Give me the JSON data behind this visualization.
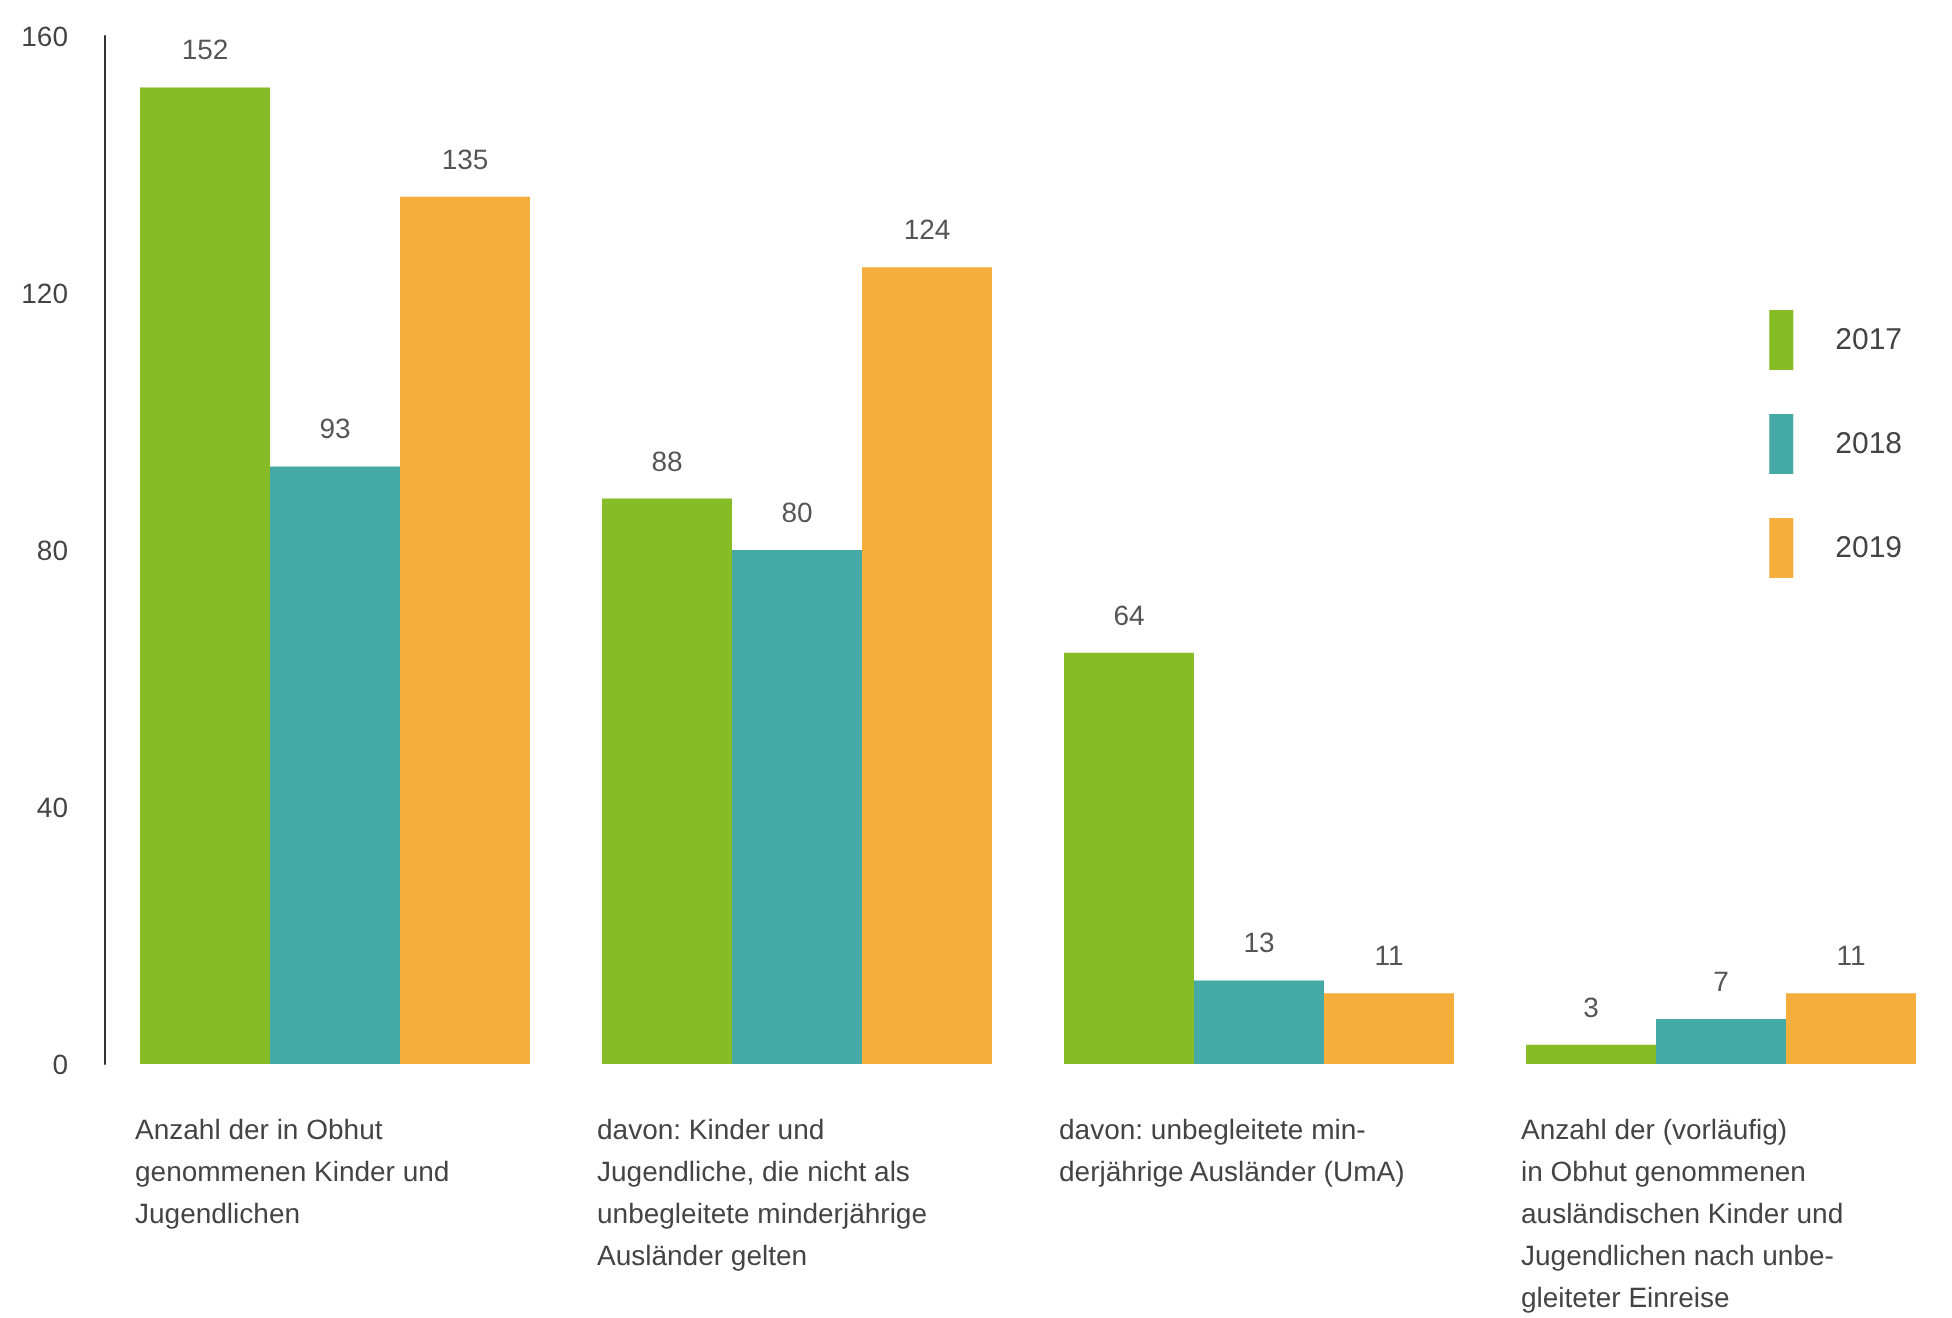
{
  "chart_data": {
    "type": "bar",
    "categories": [
      "Anzahl der in Obhut\ngenommenen Kinder und\nJugendlichen",
      "davon: Kinder und\nJugendliche, die nicht als\nunbegleitete minderjährige\nAusländer gelten",
      "davon: unbegleitete min-\nderjährige Ausländer (UmA)",
      "Anzahl der (vorläufig)\nin Obhut genommenen\nausländischen Kinder und\nJugendlichen nach unbe-\ngleiteter Einreise"
    ],
    "series": [
      {
        "name": "2017",
        "color": "#86bc25",
        "values": [
          152,
          88,
          64,
          3
        ]
      },
      {
        "name": "2018",
        "color": "#45aaa6",
        "values": [
          93,
          80,
          13,
          7
        ]
      },
      {
        "name": "2019",
        "color": "#f5ae3c",
        "values": [
          135,
          124,
          11,
          11
        ]
      }
    ],
    "ylim": [
      0,
      160
    ],
    "yticks": [
      0,
      40,
      80,
      120,
      160
    ],
    "grid": false,
    "legend": "top right",
    "data_labels": true
  }
}
